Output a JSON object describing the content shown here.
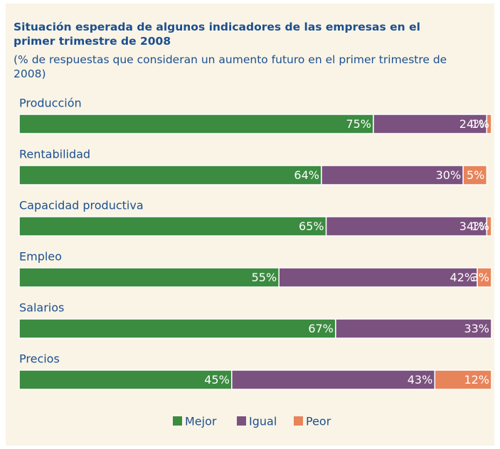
{
  "chart_data": {
    "type": "stacked-bar-horizontal",
    "title": "Situación esperada de algunos indicadores de las empresas en el primer trimestre de 2008",
    "subtitle": "(% de respuestas que consideran un aumento futuro en el primer trimestre de 2008)",
    "categories": [
      "Producción",
      "Rentabilidad",
      "Capacidad productiva",
      "Empleo",
      "Salarios",
      "Precios"
    ],
    "xlim": [
      0,
      100
    ],
    "legend": "bottom",
    "series": [
      {
        "name": "Mejor",
        "color": "#3b8b40",
        "values": [
          75,
          64,
          65,
          55,
          67,
          45
        ],
        "value_labels": [
          "75%",
          "64%",
          "65%",
          "55%",
          "67%",
          "45%"
        ]
      },
      {
        "name": "Igual",
        "color": "#7b527f",
        "values": [
          24,
          30,
          34,
          42,
          33,
          43
        ],
        "value_labels": [
          "24%",
          "30%",
          "34%",
          "42%",
          "33%",
          "43%"
        ]
      },
      {
        "name": "Peor",
        "color": "#e8845a",
        "values": [
          1,
          5,
          1,
          3,
          null,
          12
        ],
        "value_labels": [
          "1%",
          "5%",
          "1%",
          "3%",
          null,
          "12%"
        ]
      }
    ]
  }
}
